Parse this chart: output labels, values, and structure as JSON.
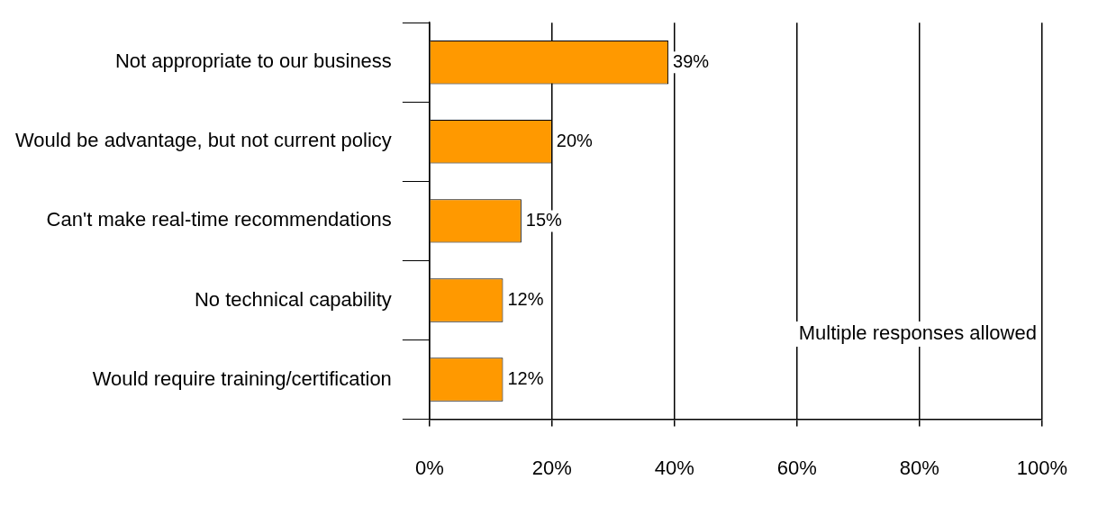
{
  "chart_data": {
    "type": "bar",
    "orientation": "horizontal",
    "categories": [
      "Not appropriate to our business",
      "Would be advantage, but not current policy",
      "Can't make real-time recommendations",
      "No technical capability",
      "Would require training/certification"
    ],
    "values": [
      39,
      20,
      15,
      12,
      12
    ],
    "value_labels": [
      "39%",
      "20%",
      "15%",
      "12%",
      "12%"
    ],
    "color": "#ff9900",
    "xlim": [
      0,
      100
    ],
    "xticks": [
      {
        "value": 0,
        "label": "0%"
      },
      {
        "value": 20,
        "label": "20%"
      },
      {
        "value": 40,
        "label": "40%"
      },
      {
        "value": 60,
        "label": "60%"
      },
      {
        "value": 80,
        "label": "80%"
      },
      {
        "value": 100,
        "label": "100%"
      }
    ],
    "grid": "x",
    "legend": false,
    "annotations": [
      "Multiple responses allowed"
    ]
  }
}
